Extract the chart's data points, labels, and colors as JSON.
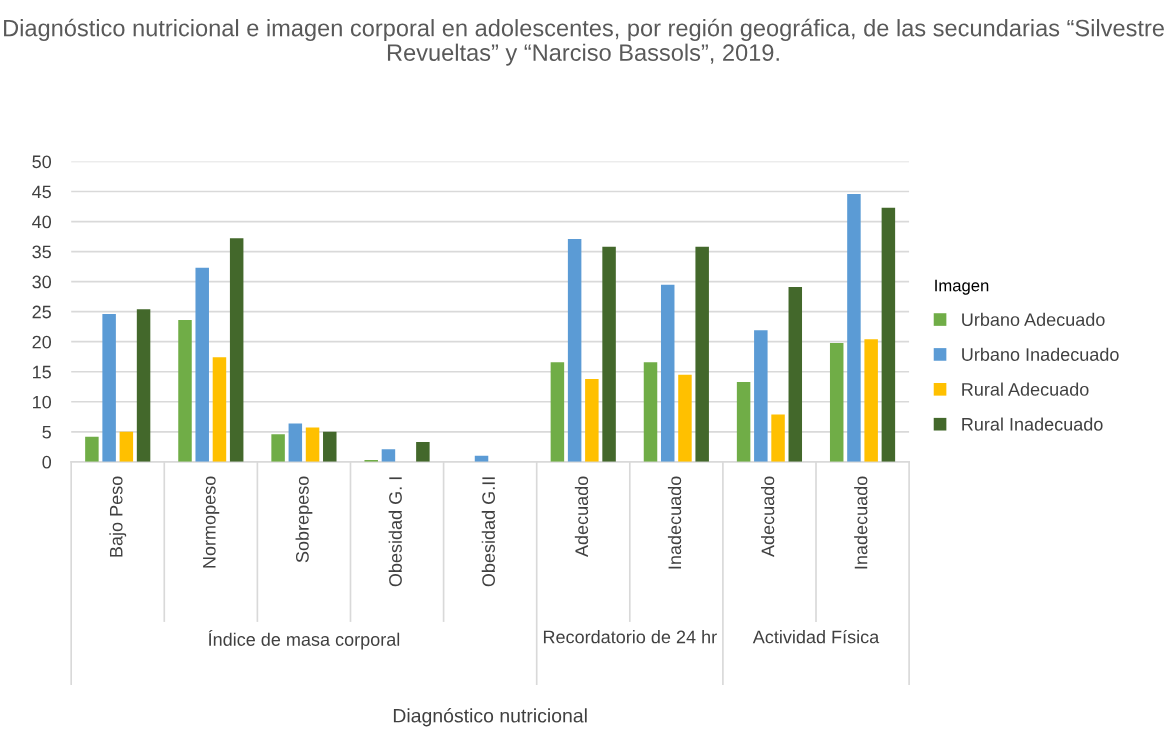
{
  "chart_data": {
    "type": "bar",
    "title": "Diagnóstico nutricional e imagen corporal en adolescentes, por región geográfica, de las secundarias “Silvestre Revueltas” y “Narciso Bassols”, 2019.",
    "legend_title": "Imagen",
    "categories": [
      "Bajo Peso",
      "Normopeso",
      "Sobrepeso",
      "Obesidad G. I",
      "Obesidad G.II",
      "Adecuado",
      "Inadecuado",
      "Adecuado",
      "Inadecuado"
    ],
    "annotations": [
      "Índice de masa corporal",
      "Recordatorio de 24 hr",
      "Actividad Física",
      "Diagnóstico nutricional"
    ],
    "series": [
      {
        "name": "Urbano Adecuado",
        "color": "#70ad47",
        "values": [
          4.2,
          23.6,
          4.6,
          0.3,
          null,
          16.6,
          16.6,
          13.3,
          19.8
        ]
      },
      {
        "name": "Urbano Inadecuado",
        "color": "#5b9bd5",
        "values": [
          24.6,
          32.3,
          6.4,
          2.1,
          1.0,
          37.1,
          29.5,
          21.9,
          44.6
        ]
      },
      {
        "name": "Rural Adecuado",
        "color": "#ffc000",
        "values": [
          5.0,
          17.4,
          5.7,
          null,
          null,
          13.8,
          14.5,
          7.9,
          20.4
        ]
      },
      {
        "name": "Rural Inadecuado",
        "color": "#43682b",
        "values": [
          25.4,
          37.2,
          5.0,
          3.3,
          null,
          35.8,
          35.8,
          29.1,
          42.3
        ]
      }
    ],
    "ylim": [
      0,
      50
    ],
    "yticks": [
      0,
      5,
      10,
      15,
      20,
      25,
      30,
      35,
      40,
      45,
      50
    ],
    "grid": "y",
    "legend": "right"
  }
}
